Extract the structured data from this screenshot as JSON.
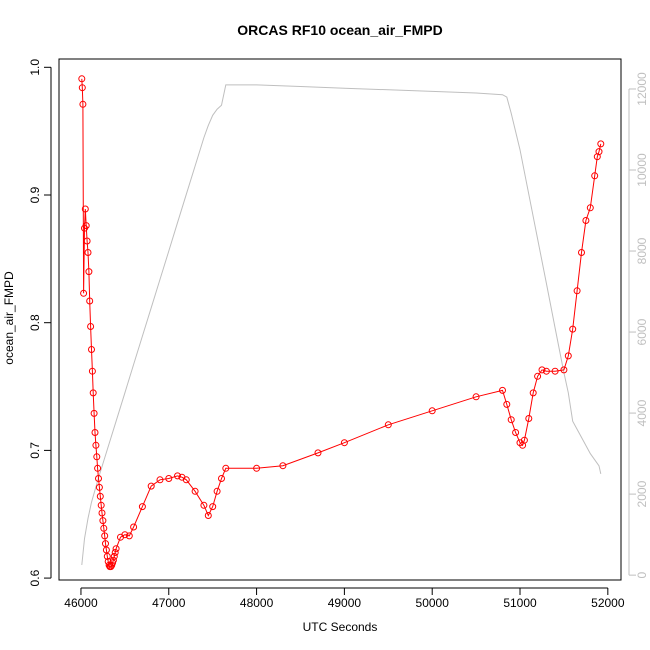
{
  "chart_data": {
    "type": "scatter",
    "title": "ORCAS RF10 ocean_air_FMPD",
    "xlabel": "UTC Seconds",
    "ylabel": "ocean_air_FMPD",
    "xlim": [
      45750,
      52150
    ],
    "ylim": [
      0.5985,
      1.0065
    ],
    "y2lim": [
      -120,
      12740
    ],
    "x_ticks": [
      46000,
      47000,
      48000,
      49000,
      50000,
      51000,
      52000
    ],
    "y_ticks": [
      0.6,
      0.7,
      0.8,
      0.9,
      1.0
    ],
    "y_tick_labels": [
      "0.6",
      "0.7",
      "0.8",
      "0.9",
      "1.0"
    ],
    "y2_ticks": [
      0,
      2000,
      4000,
      6000,
      8000,
      10000,
      12000
    ],
    "colors": {
      "primary": "#ff0000",
      "secondary": "#bfbfbf",
      "axis": "#000000"
    },
    "series": [
      {
        "style": "points-and-lines",
        "color": "#ff0000",
        "axis": "left",
        "x": [
          46010,
          46015,
          46022,
          46030,
          46040,
          46050,
          46060,
          46070,
          46080,
          46090,
          46100,
          46110,
          46120,
          46130,
          46140,
          46150,
          46160,
          46170,
          46180,
          46190,
          46200,
          46210,
          46220,
          46230,
          46240,
          46250,
          46260,
          46270,
          46280,
          46290,
          46300,
          46310,
          46320,
          46330,
          46340,
          46350,
          46360,
          46370,
          46380,
          46390,
          46400,
          46450,
          46500,
          46550,
          46600,
          46700,
          46800,
          46900,
          47000,
          47100,
          47150,
          47200,
          47300,
          47400,
          47450,
          47500,
          47550,
          47600,
          47650,
          48000,
          48300,
          48700,
          49000,
          49500,
          50000,
          50500,
          50800,
          50850,
          50900,
          50950,
          51000,
          51030,
          51050,
          51100,
          51150,
          51200,
          51250,
          51300,
          51400,
          51500,
          51550,
          51600,
          51650,
          51700,
          51750,
          51800,
          51850,
          51880,
          51900,
          51920
        ],
        "y": [
          0.991,
          0.984,
          0.971,
          0.823,
          0.874,
          0.889,
          0.876,
          0.864,
          0.855,
          0.84,
          0.817,
          0.797,
          0.779,
          0.762,
          0.745,
          0.729,
          0.714,
          0.704,
          0.695,
          0.686,
          0.678,
          0.671,
          0.664,
          0.657,
          0.651,
          0.645,
          0.639,
          0.633,
          0.627,
          0.622,
          0.617,
          0.613,
          0.61,
          0.609,
          0.609,
          0.61,
          0.612,
          0.614,
          0.617,
          0.62,
          0.623,
          0.632,
          0.634,
          0.633,
          0.64,
          0.656,
          0.672,
          0.677,
          0.678,
          0.68,
          0.679,
          0.677,
          0.668,
          0.657,
          0.649,
          0.656,
          0.668,
          0.678,
          0.686,
          0.686,
          0.688,
          0.698,
          0.706,
          0.72,
          0.731,
          0.742,
          0.747,
          0.736,
          0.724,
          0.714,
          0.706,
          0.704,
          0.708,
          0.725,
          0.745,
          0.758,
          0.763,
          0.762,
          0.762,
          0.763,
          0.774,
          0.795,
          0.825,
          0.855,
          0.88,
          0.89,
          0.915,
          0.93,
          0.934,
          0.94
        ]
      },
      {
        "style": "line",
        "color": "#bfbfbf",
        "axis": "right",
        "x": [
          46010,
          46040,
          46080,
          46120,
          46200,
          46300,
          46400,
          46500,
          46600,
          46700,
          46800,
          46900,
          47000,
          47100,
          47200,
          47300,
          47400,
          47450,
          47500,
          47550,
          47600,
          47650,
          48000,
          48500,
          49000,
          49500,
          50000,
          50500,
          50800,
          50850,
          50900,
          51000,
          51100,
          51200,
          51300,
          51400,
          51500,
          51550,
          51600,
          51700,
          51800,
          51900,
          51920
        ],
        "y": [
          250,
          900,
          1400,
          1800,
          2400,
          3100,
          3800,
          4500,
          5200,
          5900,
          6600,
          7300,
          8000,
          8700,
          9400,
          10100,
          10800,
          11100,
          11350,
          11500,
          11600,
          12100,
          12100,
          12060,
          12020,
          11980,
          11940,
          11900,
          11860,
          11800,
          11400,
          10500,
          9400,
          8300,
          7200,
          6100,
          5000,
          4500,
          3800,
          3400,
          3000,
          2700,
          2500
        ]
      }
    ]
  }
}
